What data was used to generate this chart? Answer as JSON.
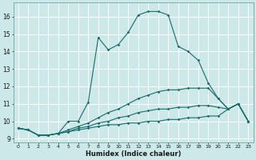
{
  "xlabel": "Humidex (Indice chaleur)",
  "bg_color": "#cce8e8",
  "grid_color": "#b0d4d4",
  "line_color": "#1a6b6b",
  "xlim": [
    -0.5,
    23.5
  ],
  "ylim": [
    8.8,
    16.8
  ],
  "yticks": [
    9,
    10,
    11,
    12,
    13,
    14,
    15,
    16
  ],
  "xticks": [
    0,
    1,
    2,
    3,
    4,
    5,
    6,
    7,
    8,
    9,
    10,
    11,
    12,
    13,
    14,
    15,
    16,
    17,
    18,
    19,
    20,
    21,
    22,
    23
  ],
  "series": [
    {
      "x": [
        0,
        1,
        2,
        3,
        4,
        5,
        6,
        7,
        8,
        9,
        10,
        11,
        12,
        13,
        14,
        15,
        16,
        17,
        18,
        19,
        20,
        21,
        22,
        23
      ],
      "y": [
        9.6,
        9.5,
        9.2,
        9.2,
        9.3,
        10.0,
        10.0,
        11.1,
        14.8,
        14.1,
        14.4,
        15.1,
        16.1,
        16.3,
        16.3,
        16.1,
        14.3,
        14.0,
        13.5,
        12.2,
        11.3,
        10.7,
        11.0,
        10.0
      ]
    },
    {
      "x": [
        0,
        1,
        2,
        3,
        4,
        5,
        6,
        7,
        8,
        9,
        10,
        11,
        12,
        13,
        14,
        15,
        16,
        17,
        18,
        19,
        20,
        21,
        22,
        23
      ],
      "y": [
        9.6,
        9.5,
        9.2,
        9.2,
        9.3,
        9.5,
        9.7,
        9.9,
        10.2,
        10.5,
        10.7,
        11.0,
        11.3,
        11.5,
        11.7,
        11.8,
        11.8,
        11.9,
        11.9,
        11.9,
        11.3,
        10.7,
        11.0,
        10.0
      ]
    },
    {
      "x": [
        0,
        1,
        2,
        3,
        4,
        5,
        6,
        7,
        8,
        9,
        10,
        11,
        12,
        13,
        14,
        15,
        16,
        17,
        18,
        19,
        20,
        21,
        22,
        23
      ],
      "y": [
        9.6,
        9.5,
        9.2,
        9.2,
        9.3,
        9.4,
        9.6,
        9.7,
        9.9,
        10.0,
        10.2,
        10.3,
        10.5,
        10.6,
        10.7,
        10.7,
        10.8,
        10.8,
        10.9,
        10.9,
        10.8,
        10.7,
        11.0,
        10.0
      ]
    },
    {
      "x": [
        0,
        1,
        2,
        3,
        4,
        5,
        6,
        7,
        8,
        9,
        10,
        11,
        12,
        13,
        14,
        15,
        16,
        17,
        18,
        19,
        20,
        21,
        22,
        23
      ],
      "y": [
        9.6,
        9.5,
        9.2,
        9.2,
        9.3,
        9.4,
        9.5,
        9.6,
        9.7,
        9.8,
        9.8,
        9.9,
        9.9,
        10.0,
        10.0,
        10.1,
        10.1,
        10.2,
        10.2,
        10.3,
        10.3,
        10.7,
        11.0,
        10.0
      ]
    }
  ]
}
